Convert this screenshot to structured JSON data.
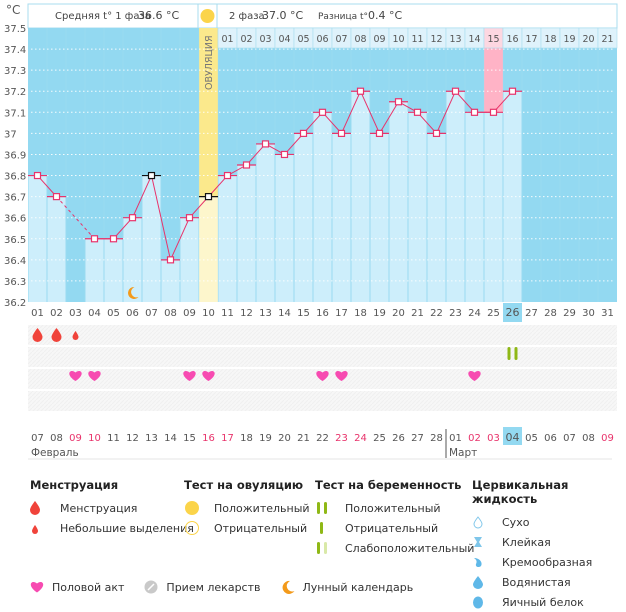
{
  "header": {
    "unit": "°C",
    "phase1_label": "Средняя t° 1 фаза",
    "phase1_value": "36.6 °C",
    "phase2_label": "2 фаза",
    "phase2_value": "37.0 °C",
    "diff_label": "Разница t°",
    "diff_value": "0.4 °C"
  },
  "ovulation_label": "ОВУЛЯЦИЯ",
  "colors": {
    "chart_bg": "#93d9f1",
    "bar_fill": "#cdeefb",
    "line": "#e8336b",
    "ovulation": "#fbe98c",
    "ovulation_light": "#fdf6cc",
    "highlight_day": "#ffb3c6",
    "today": "#93d9f1",
    "weekend": "#e8336b",
    "blood": "#f0433a",
    "heart": "#f74bb1",
    "test_green": "#8fb816",
    "moon": "#f39a1a"
  },
  "chart_data": {
    "type": "line",
    "title": "",
    "xlabel": "",
    "ylabel": "°C",
    "ylim": [
      36.2,
      37.5
    ],
    "yticks": [
      "37.5",
      "37.4",
      "37.3",
      "37.2",
      "37.1",
      "37",
      "36.9",
      "36.8",
      "36.7",
      "36.6",
      "36.5",
      "36.4",
      "36.3",
      "36.2"
    ],
    "cycle_days": [
      "01",
      "02",
      "03",
      "04",
      "05",
      "06",
      "07",
      "08",
      "09",
      "10",
      "11",
      "12",
      "13",
      "14",
      "15",
      "16",
      "17",
      "18",
      "19",
      "20",
      "21",
      "22",
      "23",
      "24",
      "25",
      "26",
      "27",
      "28",
      "29",
      "30",
      "31"
    ],
    "post_ovulation_days": [
      "01",
      "02",
      "03",
      "04",
      "05",
      "06",
      "07",
      "08",
      "09",
      "10",
      "11",
      "12",
      "13",
      "14",
      "15",
      "16",
      "17",
      "18",
      "19",
      "20",
      "21"
    ],
    "highlight_post_day": "15",
    "ovulation_day_index": 10,
    "today_day": "26",
    "series": [
      {
        "name": "Базальная температура",
        "values": [
          36.8,
          36.7,
          null,
          36.5,
          36.5,
          36.6,
          36.8,
          36.4,
          36.6,
          36.7,
          36.8,
          36.85,
          36.95,
          36.9,
          37.0,
          37.1,
          37.0,
          37.2,
          37.0,
          37.15,
          37.1,
          37.0,
          37.2,
          37.1,
          37.1,
          37.2
        ]
      }
    ],
    "black_markers": [
      7,
      10
    ],
    "dashed_gap": [
      2,
      4
    ],
    "moon_day": 6,
    "menstruation": [
      {
        "day": 1,
        "type": "full"
      },
      {
        "day": 2,
        "type": "full"
      },
      {
        "day": 3,
        "type": "light"
      }
    ],
    "pregnancy_test": [
      {
        "day": 26,
        "type": "positive"
      }
    ],
    "intercourse_days": [
      3,
      4,
      9,
      10,
      16,
      17,
      24
    ],
    "calendar_dates": [
      {
        "d": "07",
        "w": false
      },
      {
        "d": "08",
        "w": false
      },
      {
        "d": "09",
        "w": true
      },
      {
        "d": "10",
        "w": true
      },
      {
        "d": "11",
        "w": false
      },
      {
        "d": "12",
        "w": false
      },
      {
        "d": "13",
        "w": false
      },
      {
        "d": "14",
        "w": false
      },
      {
        "d": "15",
        "w": false
      },
      {
        "d": "16",
        "w": true
      },
      {
        "d": "17",
        "w": true
      },
      {
        "d": "18",
        "w": false
      },
      {
        "d": "19",
        "w": false
      },
      {
        "d": "20",
        "w": false
      },
      {
        "d": "21",
        "w": false
      },
      {
        "d": "22",
        "w": false
      },
      {
        "d": "23",
        "w": true
      },
      {
        "d": "24",
        "w": true
      },
      {
        "d": "25",
        "w": false
      },
      {
        "d": "26",
        "w": false
      },
      {
        "d": "27",
        "w": false
      },
      {
        "d": "28",
        "w": false
      },
      {
        "d": "01",
        "w": false
      },
      {
        "d": "02",
        "w": true
      },
      {
        "d": "03",
        "w": true
      },
      {
        "d": "04",
        "w": false
      },
      {
        "d": "05",
        "w": false
      },
      {
        "d": "06",
        "w": false
      },
      {
        "d": "07",
        "w": false
      },
      {
        "d": "08",
        "w": false
      },
      {
        "d": "09",
        "w": true
      }
    ],
    "months": [
      {
        "name": "Февраль",
        "start_index": 0
      },
      {
        "name": "Март",
        "start_index": 22
      }
    ]
  },
  "legend": {
    "menstruation": {
      "title": "Менструация",
      "items": [
        "Менструация",
        "Небольшие выделения"
      ]
    },
    "ovulation_test": {
      "title": "Тест на овуляцию",
      "items": [
        "Положительный",
        "Отрицательный"
      ]
    },
    "pregnancy_test": {
      "title": "Тест на беременность",
      "items": [
        "Положительный",
        "Отрицательный",
        "Слабоположительный"
      ]
    },
    "cervical": {
      "title": "Цервикальная жидкость",
      "items": [
        "Сухо",
        "Клейкая",
        "Кремообразная",
        "Водянистая",
        "Яичный белок"
      ]
    },
    "other": [
      "Половой акт",
      "Прием лекарств",
      "Лунный календарь"
    ]
  }
}
